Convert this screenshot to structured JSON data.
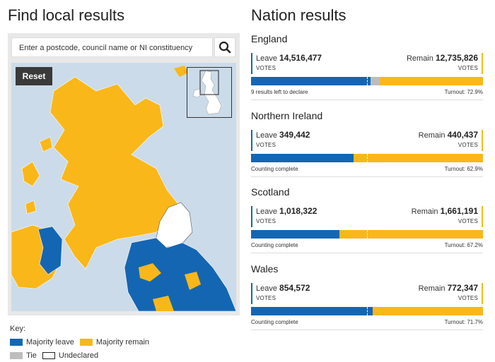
{
  "left": {
    "title": "Find local results",
    "search_placeholder": "Enter a postcode, council name or NI constituency",
    "reset_label": "Reset"
  },
  "key": {
    "title": "Key:",
    "items": [
      {
        "label": "Majority leave",
        "color": "#1466b3"
      },
      {
        "label": "Majority remain",
        "color": "#fab719"
      },
      {
        "label": "Tie",
        "color": "#bdbdbd"
      },
      {
        "label": "Undeclared",
        "color": "#ffffff"
      }
    ]
  },
  "right": {
    "title": "Nation results"
  },
  "nations": [
    {
      "name": "England",
      "leave_label": "Leave",
      "leave_votes": "14,516,477",
      "remain_label": "Remain",
      "remain_votes": "12,735,826",
      "votes_word": "VOTES",
      "leave_fraction": 0.515,
      "tie_fraction": 0.04,
      "status": "9 results left to declare",
      "turnout": "Turnout: 72.9%"
    },
    {
      "name": "Northern Ireland",
      "leave_label": "Leave",
      "leave_votes": "349,442",
      "remain_label": "Remain",
      "remain_votes": "440,437",
      "votes_word": "VOTES",
      "leave_fraction": 0.443,
      "tie_fraction": 0,
      "status": "Counting complete",
      "turnout": "Turnout: 62.9%"
    },
    {
      "name": "Scotland",
      "leave_label": "Leave",
      "leave_votes": "1,018,322",
      "remain_label": "Remain",
      "remain_votes": "1,661,191",
      "votes_word": "VOTES",
      "leave_fraction": 0.38,
      "tie_fraction": 0,
      "status": "Counting complete",
      "turnout": "Turnout: 67.2%"
    },
    {
      "name": "Wales",
      "leave_label": "Leave",
      "leave_votes": "854,572",
      "remain_label": "Remain",
      "remain_votes": "772,347",
      "votes_word": "VOTES",
      "leave_fraction": 0.525,
      "tie_fraction": 0,
      "status": "Counting complete",
      "turnout": "Turnout: 71.7%"
    }
  ],
  "colors": {
    "leave": "#1466b3",
    "remain": "#fab719",
    "tie": "#bdbdbd",
    "sea": "#cbdbe9"
  },
  "icons": {
    "search": "search-icon"
  }
}
